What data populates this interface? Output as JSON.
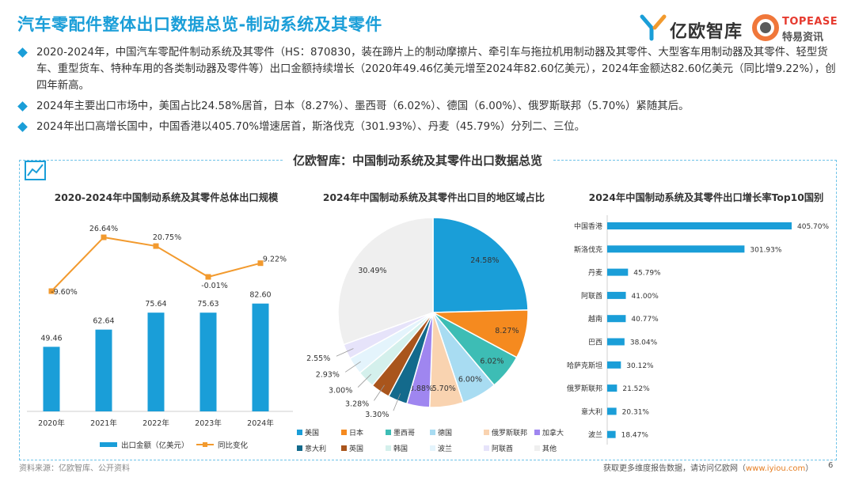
{
  "header": {
    "title": "汽车零配件整体出口数据总览-制动系统及其零件",
    "logo1_name": "亿欧智库",
    "logo2_en": "TOPEASE",
    "logo2_zh": "特易资讯"
  },
  "bullets": [
    "2020-2024年，中国汽车零配件制动系统及其零件（HS：870830，装在蹄片上的制动摩擦片、牵引车与拖拉机用制动器及其零件、大型客车用制动器及其零件、轻型货车、重型货车、特种车用的各类制动器及零件等）出口金额持续增长（2020年49.46亿美元增至2024年82.60亿美元），2024年金额达82.60亿美元（同比增9.22%），创四年新高。",
    "2024年主要出口市场中，美国占比24.58%居首，日本（8.27%）、墨西哥（6.02%）、德国（6.00%）、俄罗斯联邦（5.70%）紧随其后。",
    "2024年出口高增长国中，中国香港以405.70%增速居首，斯洛伐克（301.93%）、丹麦（45.79%）分列二、三位。"
  ],
  "panel_title": "亿欧智库：中国制动系统及其零件出口数据总览",
  "colors": {
    "accent": "#1a9ed8",
    "orange": "#f29a2e"
  },
  "chart_data": [
    {
      "type": "bar",
      "title": "2020-2024年中国制动系统及其零件总体出口规模",
      "categories": [
        "2020年",
        "2021年",
        "2022年",
        "2023年",
        "2024年"
      ],
      "series": [
        {
          "name": "出口金额（亿美元）",
          "values": [
            49.46,
            62.64,
            75.64,
            75.63,
            82.6
          ],
          "labels": [
            "49.46",
            "62.64",
            "75.64",
            "75.63",
            "82.60"
          ],
          "color": "#1a9ed8"
        },
        {
          "name": "同比变化",
          "type": "line",
          "values": [
            -9.6,
            26.64,
            20.75,
            -0.01,
            9.22
          ],
          "labels": [
            "-9.60%",
            "26.64%",
            "20.75%",
            "-0.01%",
            "9.22%"
          ],
          "color": "#f29a2e"
        }
      ]
    },
    {
      "type": "pie",
      "title": "2024年中国制动系统及其零件出口目的地区域占比",
      "slices": [
        {
          "name": "美国",
          "value": 24.58,
          "label": "24.58%",
          "color": "#1a9ed8"
        },
        {
          "name": "日本",
          "value": 8.27,
          "label": "8.27%",
          "color": "#f58a1f"
        },
        {
          "name": "墨西哥",
          "value": 6.02,
          "label": "6.02%",
          "color": "#3dbdb5"
        },
        {
          "name": "德国",
          "value": 6.0,
          "label": "6.00%",
          "color": "#a8dcf2"
        },
        {
          "name": "俄罗斯联邦",
          "value": 5.7,
          "label": "5.70%",
          "color": "#f9d3b0"
        },
        {
          "name": "加拿大",
          "value": 3.88,
          "label": "3.88%",
          "color": "#9f86f0"
        },
        {
          "name": "意大利",
          "value": 3.3,
          "label": "3.30%",
          "color": "#136a8c"
        },
        {
          "name": "英国",
          "value": 3.28,
          "label": "3.28%",
          "color": "#a9551c"
        },
        {
          "name": "韩国",
          "value": 3.0,
          "label": "3.00%",
          "color": "#d4f0ec"
        },
        {
          "name": "波兰",
          "value": 2.93,
          "label": "2.93%",
          "color": "#e4f4fc"
        },
        {
          "name": "阿联酋",
          "value": 2.55,
          "label": "2.55%",
          "color": "#e6e3fa"
        },
        {
          "name": "其他",
          "value": 30.49,
          "label": "30.49%",
          "color": "#efefef"
        }
      ]
    },
    {
      "type": "bar",
      "orientation": "horizontal",
      "title": "2024年中国制动系统及其零件出口增长率Top10国别",
      "categories": [
        "中国香港",
        "斯洛伐克",
        "丹麦",
        "阿联酋",
        "越南",
        "巴西",
        "哈萨克斯坦",
        "俄罗斯联邦",
        "意大利",
        "波兰"
      ],
      "values": [
        405.7,
        301.93,
        45.79,
        41.0,
        40.77,
        38.04,
        30.12,
        21.52,
        20.31,
        18.47
      ],
      "labels": [
        "405.70%",
        "301.93%",
        "45.79%",
        "41.00%",
        "40.77%",
        "38.04%",
        "30.12%",
        "21.52%",
        "20.31%",
        "18.47%"
      ],
      "color": "#1a9ed8"
    }
  ],
  "footer": {
    "source": "资料来源：亿欧智库、公开资料",
    "more_prefix": "获取更多维度报告数据，请访问亿欧网（",
    "url": "www.iyiou.com",
    "more_suffix": "）",
    "page": "6"
  }
}
